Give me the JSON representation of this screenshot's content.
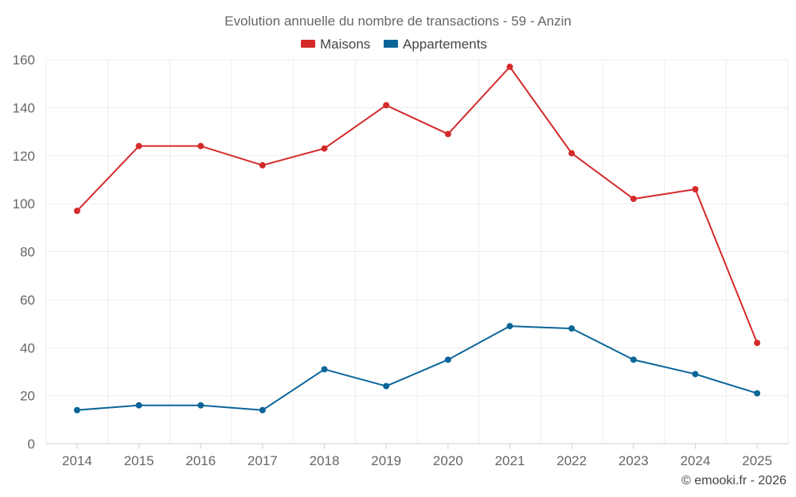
{
  "chart_data": {
    "type": "line",
    "title": "Evolution annuelle du nombre de transactions - 59 - Anzin",
    "categories": [
      "2014",
      "2015",
      "2016",
      "2017",
      "2018",
      "2019",
      "2020",
      "2021",
      "2022",
      "2023",
      "2024",
      "2025"
    ],
    "series": [
      {
        "name": "Maisons",
        "color": "#d42a2a",
        "values": [
          97,
          124,
          124,
          116,
          123,
          141,
          129,
          157,
          121,
          102,
          106,
          42
        ]
      },
      {
        "name": "Appartements",
        "color": "#0b6599",
        "values": [
          14,
          16,
          16,
          14,
          31,
          24,
          35,
          49,
          48,
          35,
          29,
          21
        ]
      }
    ],
    "ylim": [
      0,
      160
    ],
    "yticks": [
      0,
      20,
      40,
      60,
      80,
      100,
      120,
      140,
      160
    ],
    "xlabel": "",
    "ylabel": "",
    "grid": true,
    "legend": "top-center"
  },
  "credit": "© emooki.fr - 2026"
}
